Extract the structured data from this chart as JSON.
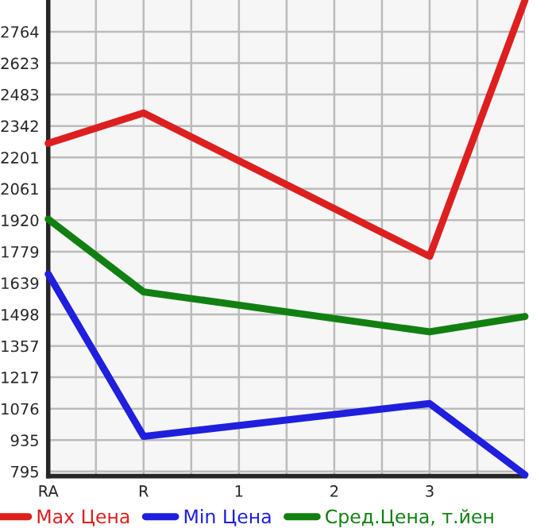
{
  "chart_data": {
    "type": "line",
    "categories": [
      "RA",
      "R",
      "1",
      "2",
      "3",
      null
    ],
    "series": [
      {
        "name": "Max Цена",
        "color": "#dd1f1f",
        "values": [
          2264,
          2400,
          null,
          null,
          1758,
          2905
        ]
      },
      {
        "name": "Min Цена",
        "color": "#1f1fdd",
        "values": [
          1679,
          952,
          null,
          null,
          1099,
          780
        ]
      },
      {
        "name": "Сред.Цена, т.йен",
        "color": "#118011",
        "values": [
          1925,
          1599,
          null,
          null,
          1420,
          1489
        ]
      }
    ],
    "ylim": [
      774,
      2906
    ],
    "yticks": [
      795,
      935,
      1076,
      1217,
      1357,
      1498,
      1639,
      1779,
      1920,
      2061,
      2201,
      2342,
      2483,
      2623,
      2764
    ],
    "grid": true,
    "legend": "bottom",
    "marker": "none",
    "line_style": "solid"
  }
}
